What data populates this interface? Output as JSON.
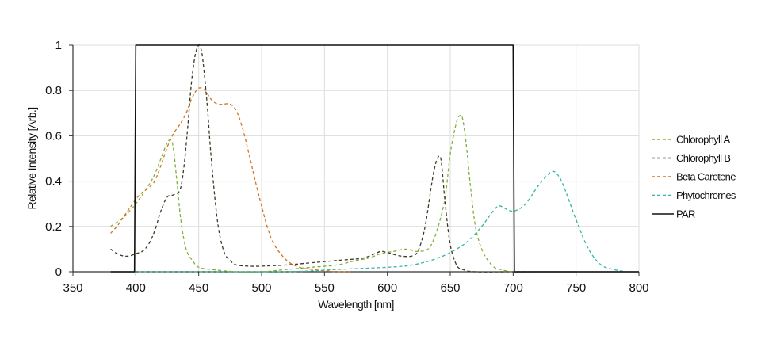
{
  "chart_data": {
    "type": "line",
    "title": "",
    "xlabel": "Wavelength [nm]",
    "ylabel": "Relative Intensity [Arb.]",
    "xlim": [
      350,
      800
    ],
    "ylim": [
      0,
      1
    ],
    "xticks": [
      "350",
      "400",
      "450",
      "500",
      "550",
      "600",
      "650",
      "700",
      "750",
      "800"
    ],
    "yticks": [
      "0",
      "0.2",
      "0.4",
      "0.6",
      "0.8",
      "1"
    ],
    "grid": true,
    "legend_position": "right",
    "series": [
      {
        "name": "Chlorophyll A",
        "color": "#7fb03a",
        "style": "dashed",
        "x": [
          380,
          390,
          400,
          410,
          415,
          420,
          425,
          428,
          430,
          433,
          436,
          440,
          445,
          450,
          460,
          480,
          500,
          520,
          540,
          560,
          575,
          585,
          595,
          605,
          615,
          625,
          635,
          645,
          650,
          655,
          658,
          660,
          663,
          666,
          670,
          675,
          680,
          685,
          690,
          700,
          720,
          750
        ],
        "y": [
          0.2,
          0.24,
          0.3,
          0.38,
          0.43,
          0.5,
          0.57,
          0.58,
          0.54,
          0.38,
          0.22,
          0.1,
          0.05,
          0.02,
          0.01,
          0.0,
          0.0,
          0.01,
          0.02,
          0.03,
          0.05,
          0.06,
          0.08,
          0.09,
          0.1,
          0.09,
          0.12,
          0.3,
          0.52,
          0.66,
          0.69,
          0.67,
          0.55,
          0.38,
          0.2,
          0.1,
          0.05,
          0.02,
          0.01,
          0.0,
          0.0,
          0.0
        ]
      },
      {
        "name": "Chlorophyll B",
        "color": "#3d3a24",
        "style": "dashed",
        "x": [
          380,
          385,
          390,
          395,
          400,
          405,
          410,
          415,
          420,
          425,
          430,
          435,
          438,
          441,
          444,
          447,
          450,
          452,
          454,
          457,
          460,
          465,
          470,
          475,
          480,
          490,
          500,
          520,
          540,
          560,
          580,
          590,
          595,
          600,
          610,
          620,
          625,
          630,
          635,
          638,
          641,
          643,
          646,
          650,
          655,
          660,
          670,
          700,
          750
        ],
        "y": [
          0.1,
          0.08,
          0.07,
          0.07,
          0.08,
          0.09,
          0.12,
          0.18,
          0.27,
          0.33,
          0.34,
          0.36,
          0.45,
          0.62,
          0.82,
          0.95,
          1.0,
          0.98,
          0.9,
          0.72,
          0.5,
          0.22,
          0.09,
          0.05,
          0.03,
          0.025,
          0.025,
          0.03,
          0.04,
          0.05,
          0.06,
          0.08,
          0.09,
          0.085,
          0.07,
          0.07,
          0.1,
          0.2,
          0.38,
          0.47,
          0.51,
          0.48,
          0.3,
          0.12,
          0.03,
          0.01,
          0.0,
          0.0,
          0.0
        ]
      },
      {
        "name": "Beta Carotene",
        "color": "#d4741e",
        "style": "dashed",
        "x": [
          380,
          385,
          390,
          395,
          400,
          405,
          410,
          415,
          420,
          425,
          430,
          435,
          440,
          445,
          450,
          455,
          460,
          465,
          470,
          475,
          480,
          485,
          490,
          495,
          500,
          505,
          510,
          520,
          530,
          540,
          550,
          560,
          570
        ],
        "y": [
          0.17,
          0.2,
          0.24,
          0.28,
          0.32,
          0.35,
          0.37,
          0.4,
          0.47,
          0.55,
          0.61,
          0.65,
          0.7,
          0.77,
          0.81,
          0.8,
          0.76,
          0.74,
          0.74,
          0.74,
          0.71,
          0.63,
          0.52,
          0.4,
          0.29,
          0.19,
          0.12,
          0.05,
          0.02,
          0.01,
          0.005,
          0.0,
          0.0
        ]
      },
      {
        "name": "Phytochromes",
        "color": "#35b5a3",
        "style": "dashed",
        "x": [
          380,
          450,
          520,
          560,
          600,
          620,
          640,
          655,
          665,
          675,
          683,
          688,
          692,
          697,
          702,
          710,
          720,
          730,
          735,
          740,
          750,
          760,
          770,
          780,
          790
        ],
        "y": [
          0.0,
          0.0,
          0.0,
          0.01,
          0.02,
          0.03,
          0.06,
          0.1,
          0.14,
          0.2,
          0.26,
          0.29,
          0.285,
          0.27,
          0.27,
          0.3,
          0.38,
          0.44,
          0.43,
          0.38,
          0.23,
          0.1,
          0.03,
          0.01,
          0.0
        ]
      },
      {
        "name": "PAR",
        "color": "#111111",
        "style": "solid",
        "x": [
          380,
          399,
          400,
          700,
          701,
          800
        ],
        "y": [
          0,
          0,
          1,
          1,
          0,
          0
        ]
      }
    ]
  }
}
